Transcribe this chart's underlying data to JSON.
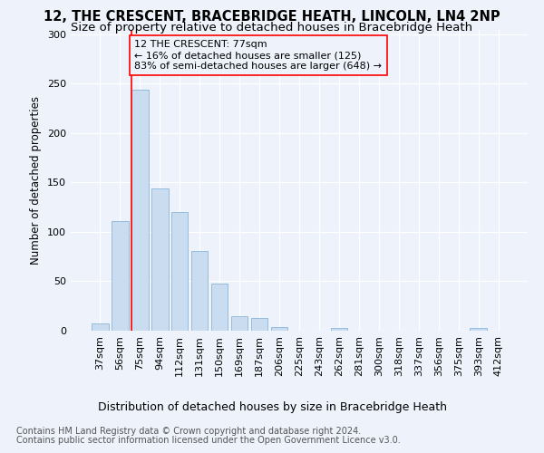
{
  "title1": "12, THE CRESCENT, BRACEBRIDGE HEATH, LINCOLN, LN4 2NP",
  "title2": "Size of property relative to detached houses in Bracebridge Heath",
  "xlabel": "Distribution of detached houses by size in Bracebridge Heath",
  "ylabel": "Number of detached properties",
  "footer1": "Contains HM Land Registry data © Crown copyright and database right 2024.",
  "footer2": "Contains public sector information licensed under the Open Government Licence v3.0.",
  "annotation_line1": "12 THE CRESCENT: 77sqm",
  "annotation_line2": "← 16% of detached houses are smaller (125)",
  "annotation_line3": "83% of semi-detached houses are larger (648) →",
  "bar_color": "#c9dcf0",
  "bar_edge_color": "#8ab4d8",
  "annotation_line_color": "red",
  "annotation_box_edge_color": "red",
  "background_color": "#edf2fb",
  "categories": [
    "37sqm",
    "56sqm",
    "75sqm",
    "94sqm",
    "112sqm",
    "131sqm",
    "150sqm",
    "169sqm",
    "187sqm",
    "206sqm",
    "225sqm",
    "243sqm",
    "262sqm",
    "281sqm",
    "300sqm",
    "318sqm",
    "337sqm",
    "356sqm",
    "375sqm",
    "393sqm",
    "412sqm"
  ],
  "values": [
    7,
    111,
    244,
    144,
    120,
    81,
    48,
    15,
    13,
    4,
    0,
    0,
    3,
    0,
    0,
    0,
    0,
    0,
    0,
    3,
    0
  ],
  "ylim": [
    0,
    305
  ],
  "yticks": [
    0,
    50,
    100,
    150,
    200,
    250,
    300
  ],
  "grid_color": "#ffffff",
  "title1_fontsize": 10.5,
  "title2_fontsize": 9.5,
  "xlabel_fontsize": 9,
  "ylabel_fontsize": 8.5,
  "annotation_fontsize": 8,
  "footer_fontsize": 7,
  "property_bar_index": 2,
  "tick_fontsize": 8
}
